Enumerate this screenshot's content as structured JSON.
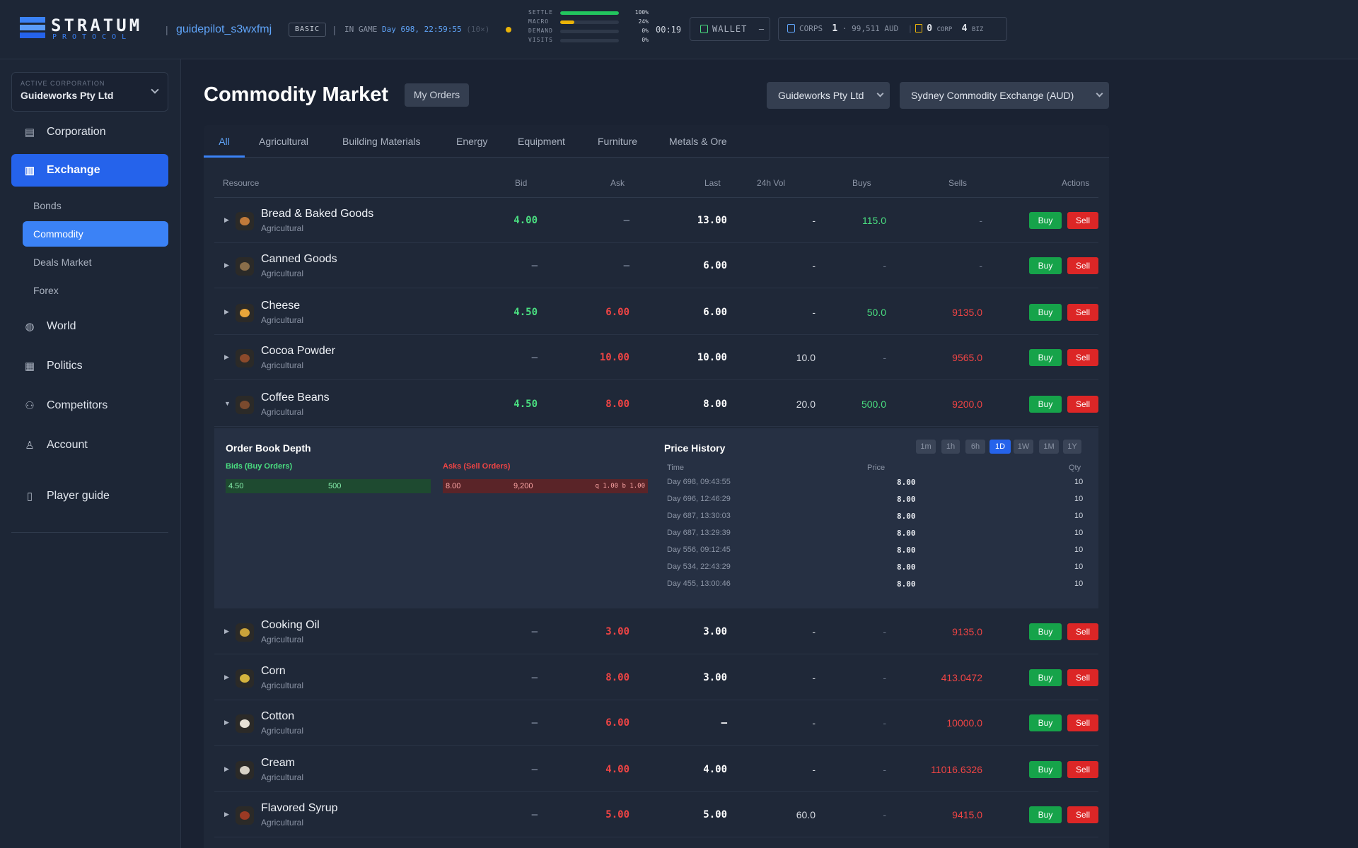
{
  "header": {
    "brand": "STRATUM",
    "brand_sub": "PROTOCOL",
    "username": "guidepilot_s3wxfmj",
    "badge": "BASIC",
    "in_game_label": "IN GAME",
    "in_game_time": "Day 698, 22:59:55",
    "speed": "(10×)",
    "meters": [
      {
        "label": "SETTLE",
        "value": "100%",
        "level": 1.0,
        "color": "#22c55e"
      },
      {
        "label": "MACRO",
        "value": "24%",
        "level": 0.24,
        "color": "#eab308"
      },
      {
        "label": "DEMAND",
        "value": "0%",
        "level": 0.0,
        "color": "#64748b"
      },
      {
        "label": "VISITS",
        "value": "0%",
        "level": 0.0,
        "color": "#64748b"
      }
    ],
    "clock": "00:19",
    "wallet_label": "WALLET",
    "wallet_value": "–",
    "corps_label": "CORPS",
    "corps_count": "1",
    "corps_value": "· 99,511 AUD",
    "corp_count": "0",
    "corp_label": "CORP",
    "biz_count": "4",
    "biz_label": "BIZ"
  },
  "sidebar": {
    "corp_label": "ACTIVE CORPORATION",
    "corp_value": "Guideworks Pty Ltd",
    "nav": {
      "corporation": "Corporation",
      "exchange": "Exchange",
      "world": "World",
      "politics": "Politics",
      "competitors": "Competitors",
      "account": "Account",
      "guide": "Player guide"
    },
    "sub": {
      "bonds": "Bonds",
      "commodity": "Commodity",
      "deals": "Deals Market",
      "forex": "Forex"
    }
  },
  "main": {
    "title": "Commodity Market",
    "my_orders": "My Orders",
    "corp_select": "Guideworks Pty Ltd",
    "exchange_select": "Sydney Commodity Exchange (AUD)",
    "tabs": [
      "All",
      "Agricultural",
      "Building Materials",
      "Energy",
      "Equipment",
      "Furniture",
      "Metals & Ore"
    ],
    "columns": {
      "resource": "Resource",
      "bid": "Bid",
      "ask": "Ask",
      "last": "Last",
      "vol": "24h Vol",
      "buys": "Buys",
      "sells": "Sells",
      "actions": "Actions"
    },
    "buy_label": "Buy",
    "sell_label": "Sell",
    "rows": [
      {
        "name": "Bread & Baked Goods",
        "cat": "Agricultural",
        "bid": "4.00",
        "ask": "–",
        "last": "13.00",
        "vol": "-",
        "buys": "115.0",
        "sells": "-"
      },
      {
        "name": "Canned Goods",
        "cat": "Agricultural",
        "bid": "–",
        "ask": "–",
        "last": "6.00",
        "vol": "-",
        "buys": "-",
        "sells": "-"
      },
      {
        "name": "Cheese",
        "cat": "Agricultural",
        "bid": "4.50",
        "ask": "6.00",
        "last": "6.00",
        "vol": "-",
        "buys": "50.0",
        "sells": "9135.0"
      },
      {
        "name": "Cocoa Powder",
        "cat": "Agricultural",
        "bid": "–",
        "ask": "10.00",
        "last": "10.00",
        "vol": "10.0",
        "buys": "-",
        "sells": "9565.0"
      },
      {
        "name": "Coffee Beans",
        "cat": "Agricultural",
        "bid": "4.50",
        "ask": "8.00",
        "last": "8.00",
        "vol": "20.0",
        "buys": "500.0",
        "sells": "9200.0"
      },
      {
        "name": "Cooking Oil",
        "cat": "Agricultural",
        "bid": "–",
        "ask": "3.00",
        "last": "3.00",
        "vol": "-",
        "buys": "-",
        "sells": "9135.0"
      },
      {
        "name": "Corn",
        "cat": "Agricultural",
        "bid": "–",
        "ask": "8.00",
        "last": "3.00",
        "vol": "-",
        "buys": "-",
        "sells": "413.0472"
      },
      {
        "name": "Cotton",
        "cat": "Agricultural",
        "bid": "–",
        "ask": "6.00",
        "last": "–",
        "vol": "-",
        "buys": "-",
        "sells": "10000.0"
      },
      {
        "name": "Cream",
        "cat": "Agricultural",
        "bid": "–",
        "ask": "4.00",
        "last": "4.00",
        "vol": "-",
        "buys": "-",
        "sells": "11016.6326"
      },
      {
        "name": "Flavored Syrup",
        "cat": "Agricultural",
        "bid": "–",
        "ask": "5.00",
        "last": "5.00",
        "vol": "60.0",
        "buys": "-",
        "sells": "9415.0"
      }
    ],
    "expanded": {
      "order_book_title": "Order Book Depth",
      "bids_label": "Bids (Buy Orders)",
      "asks_label": "Asks (Sell Orders)",
      "bid_price": "4.50",
      "bid_qty": "500",
      "ask_price": "8.00",
      "ask_qty": "9,200",
      "ask_extra": "q 1.00 b 1.00",
      "history_title": "Price History",
      "timeframes": [
        "1m",
        "1h",
        "6h",
        "1D",
        "1W",
        "1M",
        "1Y"
      ],
      "active_timeframe": "1D",
      "hist_cols": {
        "time": "Time",
        "price": "Price",
        "qty": "Qty"
      },
      "history": [
        {
          "time": "Day 698, 09:43:55",
          "price": "8.00",
          "qty": "10"
        },
        {
          "time": "Day 696, 12:46:29",
          "price": "8.00",
          "qty": "10"
        },
        {
          "time": "Day 687, 13:30:03",
          "price": "8.00",
          "qty": "10"
        },
        {
          "time": "Day 687, 13:29:39",
          "price": "8.00",
          "qty": "10"
        },
        {
          "time": "Day 556, 09:12:45",
          "price": "8.00",
          "qty": "10"
        },
        {
          "time": "Day 534, 22:43:29",
          "price": "8.00",
          "qty": "10"
        },
        {
          "time": "Day 455, 13:00:46",
          "price": "8.00",
          "qty": "10"
        }
      ]
    }
  }
}
